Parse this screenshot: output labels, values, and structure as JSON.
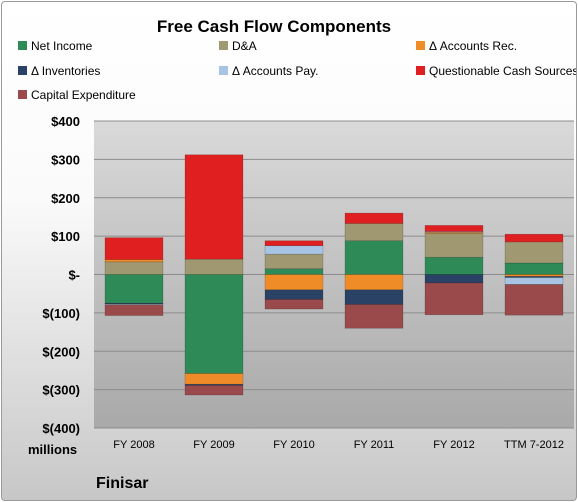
{
  "chart_data": {
    "type": "bar",
    "stacked": true,
    "title": "Free Cash Flow Components",
    "unit_label": "millions",
    "company": "Finisar",
    "categories": [
      "FY 2008",
      "FY 2009",
      "FY 2010",
      "FY 2011",
      "FY 2012",
      "TTM 7-2012"
    ],
    "ylim": [
      -400,
      400
    ],
    "yticks": [
      400,
      300,
      200,
      100,
      0,
      -100,
      -200,
      -300,
      -400
    ],
    "ytick_labels": [
      "$400",
      "$300",
      "$200",
      "$100",
      "$-",
      "$(100)",
      "$(200)",
      "$(300)",
      "$(400)"
    ],
    "grid": true,
    "legend_position": "top",
    "series": [
      {
        "name": "Net Income",
        "color": "#2e8b57",
        "values": [
          -75,
          -258,
          15,
          88,
          45,
          30
        ]
      },
      {
        "name": "D&A",
        "color": "#a09870",
        "values": [
          33,
          40,
          38,
          45,
          62,
          55
        ]
      },
      {
        "name": "Δ Accounts Rec.",
        "color": "#f08c28",
        "values": [
          6,
          -28,
          -40,
          -40,
          3,
          -5
        ]
      },
      {
        "name": "Δ Inventories",
        "color": "#2a4266",
        "values": [
          -2,
          -3,
          -25,
          -38,
          -22,
          -3
        ]
      },
      {
        "name": "Δ Accounts Pay.",
        "color": "#a8c4e4",
        "values": [
          -2,
          0,
          22,
          0,
          2,
          -18
        ]
      },
      {
        "name": "Questionable Cash Sources",
        "color": "#e02020",
        "values": [
          57,
          272,
          13,
          27,
          16,
          20
        ]
      },
      {
        "name": "Capital Expenditure",
        "color": "#9a4a4a",
        "values": [
          -28,
          -25,
          -25,
          -62,
          -83,
          -80
        ]
      }
    ]
  }
}
